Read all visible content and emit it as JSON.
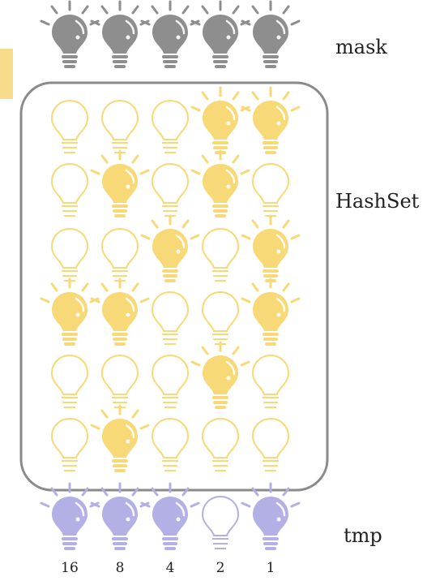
{
  "colors": {
    "mask_on": "#8e8e8e",
    "hashset_on": "#f7d978",
    "hashset_off_stroke": "#f7d978",
    "tmp_on": "#b3b0e6",
    "tmp_off_stroke": "#b3b0e6",
    "frame": "#8a8a8a",
    "accent_bar": "#f7dc8c"
  },
  "labels": {
    "mask": "mask",
    "hashset": "HashSet",
    "tmp": "tmp"
  },
  "weights": [
    "16",
    "8",
    "4",
    "2",
    "1"
  ],
  "mask_bits": [
    1,
    1,
    1,
    1,
    1
  ],
  "hashset_rows": [
    [
      0,
      0,
      0,
      1,
      1
    ],
    [
      0,
      1,
      0,
      1,
      0
    ],
    [
      0,
      0,
      1,
      0,
      1
    ],
    [
      1,
      1,
      0,
      0,
      1
    ],
    [
      0,
      0,
      0,
      1,
      0
    ],
    [
      0,
      1,
      0,
      0,
      0
    ]
  ],
  "tmp_bits": [
    1,
    1,
    1,
    0,
    1
  ]
}
